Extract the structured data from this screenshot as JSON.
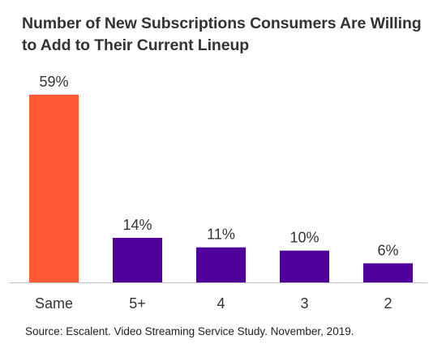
{
  "title": "Number of New Subscriptions Consumers Are Willing to Add to Their Current Lineup",
  "source": "Source: Escalent. Video Streaming Service Study. November, 2019.",
  "colors": {
    "highlight": "#ff5a36",
    "default": "#50009a",
    "axis": "#bfbfbf",
    "text": "#333333"
  },
  "chart_data": {
    "type": "bar",
    "categories": [
      "Same",
      "5+",
      "4",
      "3",
      "2"
    ],
    "values": [
      59,
      14,
      11,
      10,
      6
    ],
    "data_labels": [
      "59%",
      "14%",
      "11%",
      "10%",
      "6%"
    ],
    "title": "Number of New Subscriptions Consumers Are Willing to Add to Their Current Lineup",
    "xlabel": "",
    "ylabel": "",
    "ylim": [
      0,
      59
    ],
    "grid": false,
    "legend": "none",
    "highlight_index": 0
  }
}
